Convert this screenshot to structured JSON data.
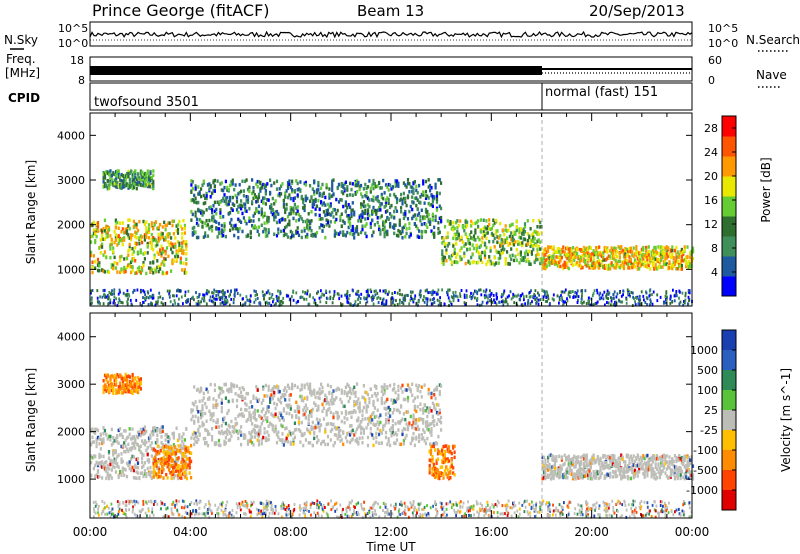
{
  "header": {
    "station": "Prince George (fitACF)",
    "beam": "Beam 13",
    "date": "20/Sep/2013"
  },
  "left_labels": {
    "nsky": "N.Sky",
    "freq_line1": "Freq.",
    "freq_line2": "[MHz]",
    "cpid": "CPID"
  },
  "right_labels": {
    "nsearch": "N.Search",
    "nave": "Nave"
  },
  "strip_ticks": {
    "nsky_top": "10^5",
    "nsky_bottom": "10^0",
    "nsearch_top": "10^5",
    "nsearch_bottom": "10^0",
    "freq_top": "18",
    "freq_bottom": "8",
    "nave_top": "60",
    "nave_bottom": "0"
  },
  "cpid_modes": [
    {
      "label": "twofsound 3501",
      "start_hour": 0,
      "end_hour": 18
    },
    {
      "label": "normal (fast) 151",
      "start_hour": 18,
      "end_hour": 24
    }
  ],
  "colors": {
    "power_scale": [
      "#0000ff",
      "#1e5aa0",
      "#3f8f5a",
      "#2e6e2e",
      "#66cc33",
      "#e8e800",
      "#ff9900",
      "#ff5500",
      "#ff0000"
    ],
    "velocity_scale": [
      "#1a3fb0",
      "#2a5fbf",
      "#2e8b57",
      "#59c43a",
      "#bdbdb8",
      "#ffbf00",
      "#ff8c00",
      "#ff4500",
      "#e00000"
    ],
    "ground_scatter": "#bebeb9"
  },
  "chart_data": [
    {
      "type": "heatmap",
      "panel": "power",
      "title": "",
      "xlabel": "Time UT",
      "ylabel": "Slant Range [km]",
      "xlim": [
        0,
        24
      ],
      "ylim": [
        180,
        4500
      ],
      "x_ticks": [
        "00:00",
        "04:00",
        "08:00",
        "12:00",
        "16:00",
        "20:00",
        "00:00"
      ],
      "y_ticks": [
        "1000",
        "2000",
        "3000",
        "4000"
      ],
      "colorbar": {
        "label": "Power [dB]",
        "ticks": [
          "4",
          "8",
          "12",
          "16",
          "20",
          "24",
          "28"
        ],
        "range": [
          0,
          30
        ]
      },
      "scatter_regions": [
        {
          "from_hour": 0.0,
          "to_hour": 3.8,
          "range_min_km": 900,
          "range_max_km": 2100,
          "power_db": 18
        },
        {
          "from_hour": 0.5,
          "to_hour": 2.5,
          "range_min_km": 2800,
          "range_max_km": 3200,
          "power_db": 10
        },
        {
          "from_hour": 4.0,
          "to_hour": 14.0,
          "range_min_km": 1700,
          "range_max_km": 3000,
          "power_db": 8
        },
        {
          "from_hour": 14.0,
          "to_hour": 18.0,
          "range_min_km": 1100,
          "range_max_km": 2100,
          "power_db": 14
        },
        {
          "from_hour": 18.0,
          "to_hour": 24.0,
          "range_min_km": 1000,
          "range_max_km": 1500,
          "power_db": 20
        }
      ]
    },
    {
      "type": "heatmap",
      "panel": "velocity",
      "title": "",
      "xlabel": "Time UT",
      "ylabel": "Slant Range [km]",
      "xlim": [
        0,
        24
      ],
      "ylim": [
        180,
        4500
      ],
      "x_ticks": [
        "00:00",
        "04:00",
        "08:00",
        "12:00",
        "16:00",
        "20:00",
        "00:00"
      ],
      "y_ticks": [
        "1000",
        "2000",
        "3000",
        "4000"
      ],
      "colorbar": {
        "label": "Velocity [m s^-1]",
        "ticks": [
          "1000",
          "500",
          "100",
          "25",
          "-25",
          "-100",
          "-500",
          "-1000"
        ]
      },
      "scatter_regions": [
        {
          "from_hour": 0.0,
          "to_hour": 3.8,
          "range_min_km": 1000,
          "range_max_km": 2100,
          "velocity": 0
        },
        {
          "from_hour": 2.5,
          "to_hour": 4.0,
          "range_min_km": 1000,
          "range_max_km": 1700,
          "velocity": -200
        },
        {
          "from_hour": 0.5,
          "to_hour": 2.0,
          "range_min_km": 2800,
          "range_max_km": 3200,
          "velocity": -150
        },
        {
          "from_hour": 4.0,
          "to_hour": 14.0,
          "range_min_km": 1700,
          "range_max_km": 3000,
          "velocity": 0
        },
        {
          "from_hour": 13.5,
          "to_hour": 14.5,
          "range_min_km": 1000,
          "range_max_km": 1700,
          "velocity": -200
        },
        {
          "from_hour": 18.0,
          "to_hour": 24.0,
          "range_min_km": 1000,
          "range_max_km": 1500,
          "velocity": 0
        }
      ]
    }
  ]
}
